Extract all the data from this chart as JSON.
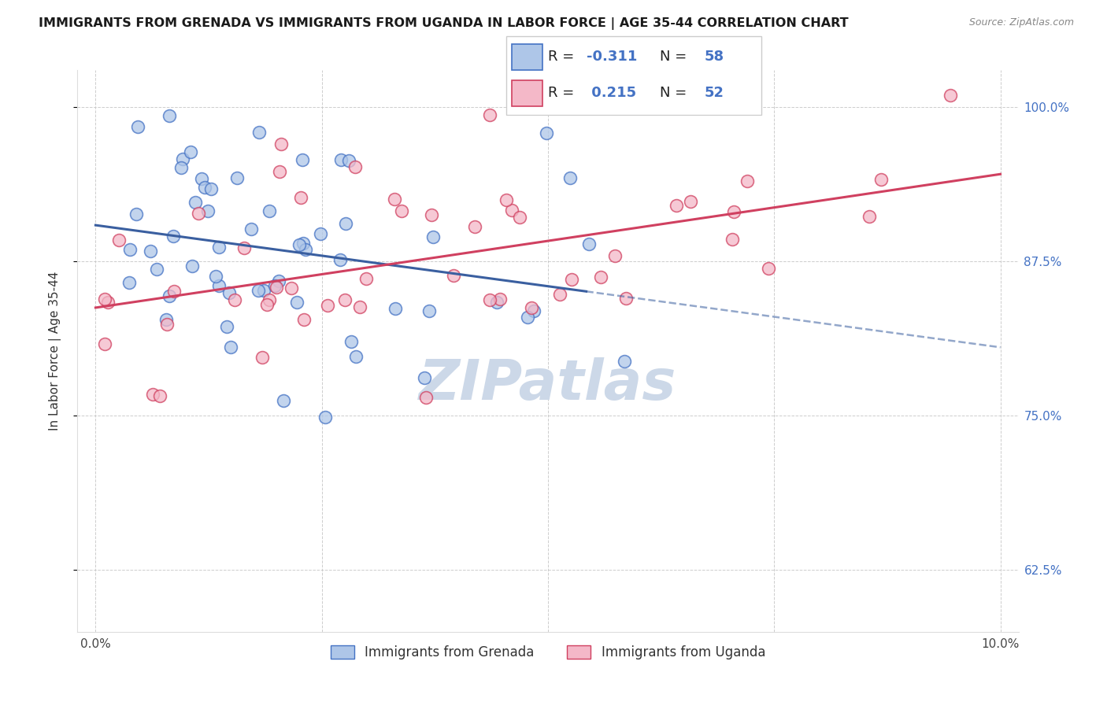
{
  "title": "IMMIGRANTS FROM GRENADA VS IMMIGRANTS FROM UGANDA IN LABOR FORCE | AGE 35-44 CORRELATION CHART",
  "source": "Source: ZipAtlas.com",
  "ylabel": "In Labor Force | Age 35-44",
  "xlim": [
    -0.002,
    0.102
  ],
  "ylim": [
    0.575,
    1.03
  ],
  "yticks": [
    0.625,
    0.75,
    0.875,
    1.0
  ],
  "ytick_labels": [
    "62.5%",
    "75.0%",
    "87.5%",
    "100.0%"
  ],
  "xticks": [
    0.0,
    0.025,
    0.05,
    0.075,
    0.1
  ],
  "xtick_labels": [
    "0.0%",
    "",
    "",
    "",
    "10.0%"
  ],
  "r_grenada": -0.311,
  "n_grenada": 58,
  "r_uganda": 0.215,
  "n_uganda": 52,
  "color_grenada_fill": "#aec6e8",
  "color_grenada_edge": "#4472C4",
  "color_uganda_fill": "#f4b8c8",
  "color_uganda_edge": "#d04060",
  "color_line_grenada": "#3a5fa0",
  "color_line_uganda": "#d04060",
  "watermark": "ZIPatlas",
  "watermark_color": "#ccd8e8",
  "title_fontsize": 11.5,
  "axis_label_fontsize": 11,
  "tick_fontsize": 11,
  "legend_fontsize": 13
}
